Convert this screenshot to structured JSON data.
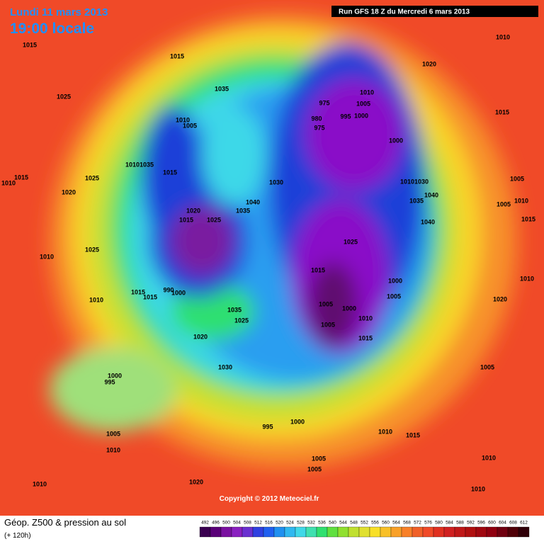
{
  "header": {
    "date": "Lundi 11 mars 2013",
    "time": "19:00 locale",
    "run": "Run GFS 18 Z du Mercredi 6 mars 2013"
  },
  "copyright": "Copyright © 2012 Meteociel.fr",
  "footer": {
    "title": "Géop. Z500 & pression au sol",
    "subtitle": "(+ 120h)"
  },
  "isobar_labels": [
    "1015",
    "1025",
    "1015",
    "1035",
    "1010",
    "1005",
    "1010",
    "1035",
    "1015",
    "1015",
    "1010",
    "1025",
    "1020",
    "1020",
    "1015",
    "1025",
    "1030",
    "1040",
    "1035",
    "1025",
    "1010",
    "1015",
    "1015",
    "990",
    "1000",
    "1010",
    "1035",
    "1025",
    "1020",
    "1030",
    "1000",
    "995",
    "1005",
    "1010",
    "1010",
    "1020",
    "995",
    "1000",
    "1005",
    "1005",
    "1010",
    "1015",
    "1010",
    "1010",
    "1005",
    "1020",
    "1010",
    "1015",
    "1005",
    "1010",
    "1005",
    "1015",
    "1010",
    "1020",
    "1010",
    "1005",
    "1000",
    "975",
    "980",
    "975",
    "995",
    "1000",
    "1010",
    "1030",
    "1040",
    "1035",
    "1040",
    "1025",
    "1015",
    "1000",
    "1005",
    "1005",
    "1000",
    "1010",
    "1005",
    "1015"
  ],
  "legend": {
    "labels": [
      492,
      496,
      500,
      504,
      508,
      512,
      516,
      520,
      524,
      528,
      532,
      536,
      540,
      544,
      548,
      552,
      556,
      560,
      564,
      568,
      572,
      576,
      580,
      584,
      588,
      592,
      596,
      600,
      604,
      608,
      612
    ]
  }
}
